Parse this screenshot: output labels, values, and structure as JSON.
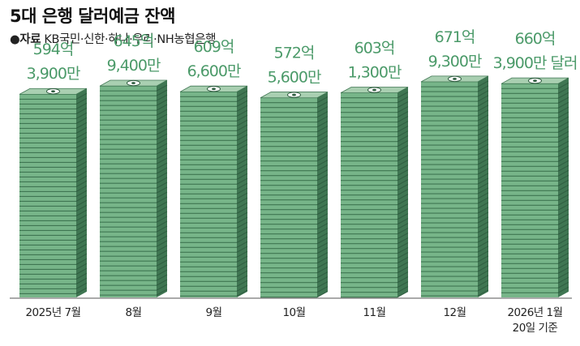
{
  "header": {
    "title": "5대 은행 달러예금 잔액",
    "source_bullet": "●",
    "source_label": "자료",
    "source_text": " KB국민·신한·하나·우리·NH농협은행"
  },
  "colors": {
    "money_green": "#77b589",
    "money_dark": "#3f7652",
    "money_top": "#a9cfb1",
    "label_green": "#4b9a69"
  },
  "chart_data": {
    "type": "bar",
    "title": "5대 은행 달러예금 잔액",
    "categories": [
      "2025년 7월",
      "8월",
      "9월",
      "10월",
      "11월",
      "12월",
      "2026년 1월 20일 기준"
    ],
    "category_lines": [
      [
        "2025년 7월"
      ],
      [
        "8월"
      ],
      [
        "9월"
      ],
      [
        "10월"
      ],
      [
        "11월"
      ],
      [
        "12월"
      ],
      [
        "2026년 1월",
        "20일 기준"
      ]
    ],
    "values": [
      594.39,
      645.94,
      609.66,
      572.56,
      603.13,
      671.93,
      660.39
    ],
    "unit": "억 달러",
    "data_labels": [
      [
        "594억",
        "3,900만"
      ],
      [
        "645억",
        "9,400만"
      ],
      [
        "609억",
        "6,600만"
      ],
      [
        "572억",
        "5,600만"
      ],
      [
        "603억",
        "1,300만"
      ],
      [
        "671억",
        "9,300만"
      ],
      [
        "660억",
        "3,900만 달러"
      ]
    ],
    "xlabel": "",
    "ylabel": "",
    "grid": false,
    "ylim": [
      0,
      700
    ]
  }
}
